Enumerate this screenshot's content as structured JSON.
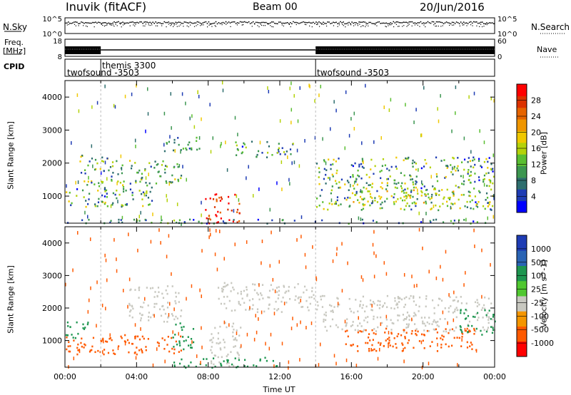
{
  "header": {
    "station": "Inuvik (fitACF)",
    "beam": "Beam 00",
    "date": "20/Jun/2016"
  },
  "left_labels": {
    "nsky": "N.Sky",
    "freq": "Freq.",
    "freq_unit": "[MHz]",
    "cpid": "CPID"
  },
  "right_labels": {
    "nsearch": "N.Search",
    "nave": "Nave"
  },
  "cpid_labels": [
    {
      "text": "twofsound -3503",
      "start_hour": 0.0
    },
    {
      "text": "themis 3300",
      "start_hour": 2.0
    },
    {
      "text": "twofsound -3503",
      "start_hour": 14.0
    }
  ],
  "colors": {
    "power": [
      "#0000ff",
      "#1e3cb4",
      "#2e6e6e",
      "#3c9650",
      "#5abe32",
      "#b4d20a",
      "#f0c800",
      "#f09600",
      "#e66400",
      "#dc3200",
      "#ff0000"
    ],
    "velocity": [
      "#ff0000",
      "#ff5a00",
      "#f59600",
      "#c8c8c0",
      "#50c830",
      "#1e9650",
      "#2a64b4",
      "#1e3cb4"
    ]
  },
  "chart_data": [
    {
      "type": "line",
      "title": "N.Sky / N.Search",
      "ylabel": "N.Sky",
      "y2label": "N.Search",
      "yticks": [
        "10^5",
        "10^0"
      ],
      "y2ticks": [
        "10^5",
        "10^0"
      ],
      "xlim": [
        0,
        24
      ],
      "series": [
        {
          "name": "N.Sky",
          "level": 0.45
        },
        {
          "name": "N.Search",
          "level": 0.72
        }
      ]
    },
    {
      "type": "line",
      "title": "Freq. / Nave",
      "ylabel": "Freq. [MHz]",
      "y2label": "Nave",
      "yticks": [
        "18",
        "8"
      ],
      "y2ticks": [
        "60",
        "0"
      ],
      "xlim": [
        0,
        24
      ],
      "segments": [
        {
          "start": 0.0,
          "end": 2.0,
          "style": "dense"
        },
        {
          "start": 2.0,
          "end": 14.0,
          "style": "line"
        },
        {
          "start": 14.0,
          "end": 24.0,
          "style": "dense"
        }
      ]
    },
    {
      "type": "heatmap",
      "title": "Power",
      "ylabel": "Slant Range [km]",
      "colorbar_label": "Power [dB]",
      "colorbar_ticks": [
        "28",
        "24",
        "20",
        "16",
        "12",
        "8",
        "4"
      ],
      "ylim": [
        180,
        4500
      ],
      "xlim": [
        0,
        24
      ],
      "yticks": [
        "4000",
        "3000",
        "2000",
        "1000"
      ],
      "blobs": [
        {
          "h0": 0.0,
          "h1": 5.0,
          "r0": 700,
          "r1": 1500,
          "v0": 4,
          "v1": 20
        },
        {
          "h0": 0.8,
          "h1": 2.5,
          "r0": 1700,
          "r1": 2300,
          "v0": 6,
          "v1": 20
        },
        {
          "h0": 2.5,
          "h1": 6.5,
          "r0": 1400,
          "r1": 2100,
          "v0": 6,
          "v1": 18
        },
        {
          "h0": 5.5,
          "h1": 7.5,
          "r0": 2300,
          "r1": 2800,
          "v0": 6,
          "v1": 16
        },
        {
          "h0": 7.8,
          "h1": 9.8,
          "r0": 200,
          "r1": 1100,
          "v0": 24,
          "v1": 30
        },
        {
          "h0": 9.5,
          "h1": 12.8,
          "r0": 2200,
          "r1": 2700,
          "v0": 4,
          "v1": 16
        },
        {
          "h0": 14.0,
          "h1": 24.0,
          "r0": 600,
          "r1": 2200,
          "v0": 4,
          "v1": 20
        },
        {
          "h0": 16.0,
          "h1": 22.0,
          "r0": 800,
          "r1": 1300,
          "v0": 12,
          "v1": 22
        },
        {
          "h0": 0.0,
          "h1": 24.0,
          "r0": 190,
          "r1": 320,
          "v0": 4,
          "v1": 16
        }
      ]
    },
    {
      "type": "heatmap",
      "title": "Velocity",
      "ylabel": "Slant Range [km]",
      "xlabel": "Time UT",
      "colorbar_label": "Velocity [m s^-1]",
      "colorbar_ticks": [
        "1000",
        "500",
        "100",
        "25",
        "-25",
        "-100",
        "-500",
        "-1000"
      ],
      "ylim": [
        180,
        4500
      ],
      "xlim": [
        0,
        24
      ],
      "yticks": [
        "4000",
        "3000",
        "2000",
        "1000"
      ],
      "xticks": [
        "00:00",
        "04:00",
        "08:00",
        "12:00",
        "16:00",
        "20:00",
        "00:00"
      ],
      "blobs": [
        {
          "h0": 0.0,
          "h1": 6.5,
          "r0": 600,
          "r1": 1200,
          "v0": -500,
          "v1": -100
        },
        {
          "h0": 0.0,
          "h1": 1.5,
          "r0": 1100,
          "r1": 1600,
          "v0": 100,
          "v1": 500
        },
        {
          "h0": 3.5,
          "h1": 6.5,
          "r0": 1600,
          "r1": 2700,
          "v0": -25,
          "v1": 25
        },
        {
          "h0": 6.0,
          "h1": 7.2,
          "r0": 700,
          "r1": 1600,
          "v0": 100,
          "v1": 500
        },
        {
          "h0": 8.0,
          "h1": 9.8,
          "r0": 200,
          "r1": 1600,
          "v0": -25,
          "v1": 25
        },
        {
          "h0": 8.5,
          "h1": 14.0,
          "r0": 1900,
          "r1": 2800,
          "v0": -25,
          "v1": 25
        },
        {
          "h0": 14.0,
          "h1": 24.0,
          "r0": 1300,
          "r1": 2400,
          "v0": -25,
          "v1": 25
        },
        {
          "h0": 15.5,
          "h1": 23.0,
          "r0": 700,
          "r1": 1400,
          "v0": -500,
          "v1": -100
        },
        {
          "h0": 22.0,
          "h1": 24.0,
          "r0": 1200,
          "r1": 2000,
          "v0": 100,
          "v1": 500
        },
        {
          "h0": 6.0,
          "h1": 12.0,
          "r0": 190,
          "r1": 500,
          "v0": 100,
          "v1": 500
        }
      ]
    }
  ]
}
